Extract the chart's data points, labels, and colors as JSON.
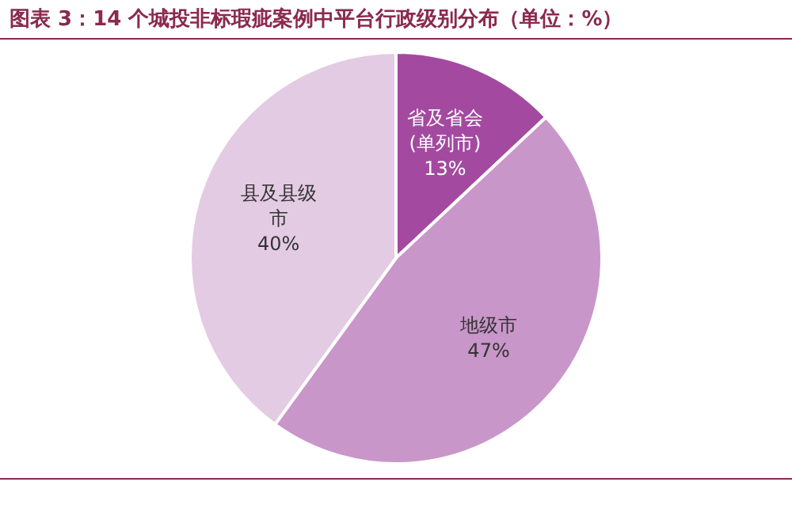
{
  "chart_data": {
    "type": "pie",
    "title": "图表 3：14 个城投非标瑕疵案例中平台行政级别分布（单位：%）",
    "categories": [
      "省及省会(单列市)",
      "地级市",
      "县及县级市"
    ],
    "values": [
      13,
      47,
      40
    ],
    "value_labels": [
      "13%",
      "47%",
      "40%"
    ],
    "colors": [
      "#a34aa0",
      "#c996c9",
      "#e3cbe3"
    ],
    "legend": false
  }
}
